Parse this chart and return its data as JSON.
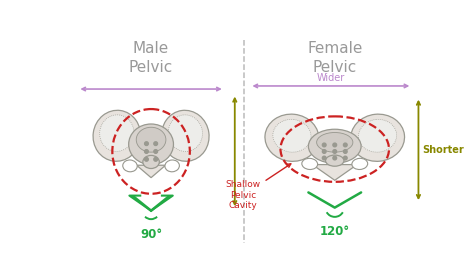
{
  "title_male": "Male\nPelvic",
  "title_female": "Female\nPelvic",
  "title_fontsize": 11,
  "bg_color": "#ffffff",
  "bone_fill": "#e8e3de",
  "bone_fill2": "#d8d3ce",
  "bone_edge": "#999990",
  "dashed_circle_color": "#cc2222",
  "angle_color": "#22aa44",
  "arrow_color": "#bb88cc",
  "shorter_color": "#888800",
  "annotation_red": "#cc2222",
  "male_angle_label": "90°",
  "female_angle_label": "120°",
  "wider_label": "Wider",
  "shorter_label": "Shorter",
  "cavity_label": "Shallow\nPelvic\nCavity",
  "divider_color": "#bbbbbb",
  "title_color": "#999999"
}
